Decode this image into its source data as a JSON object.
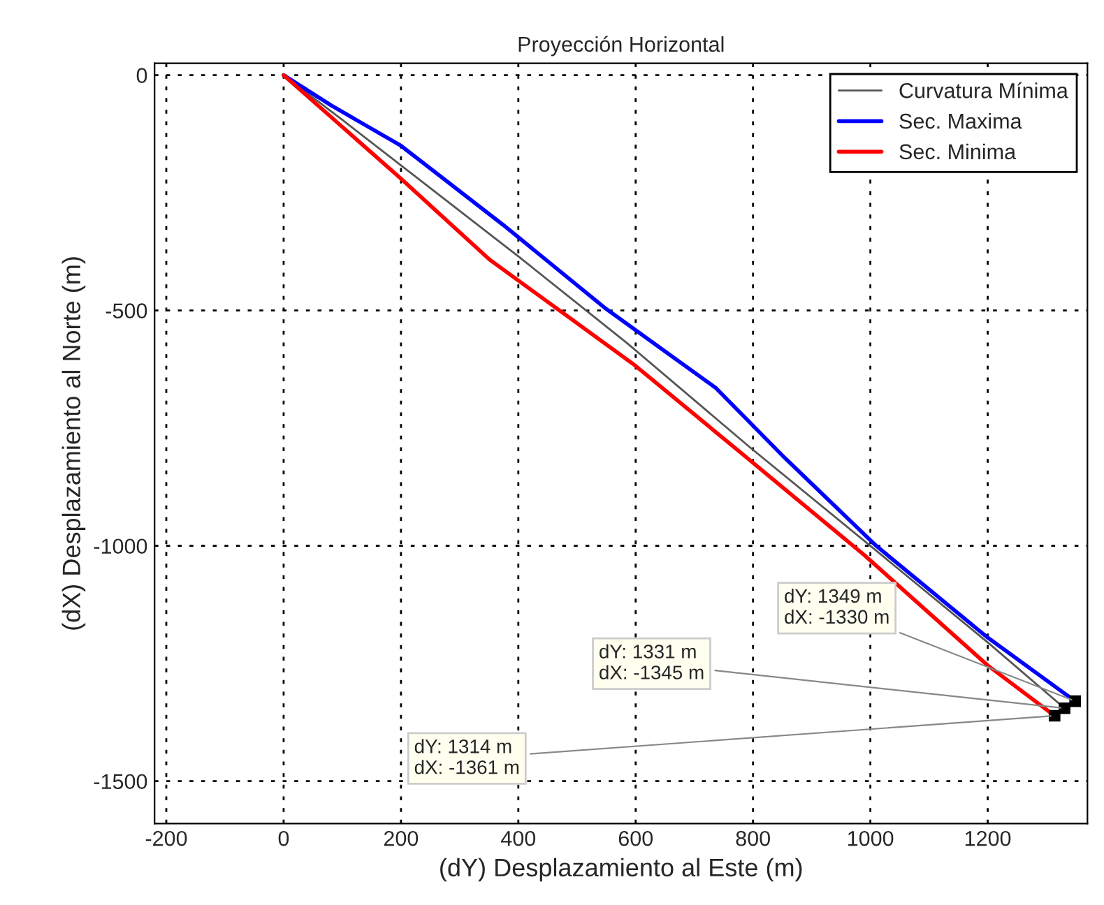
{
  "chart_data": {
    "type": "line",
    "title": "Proyección Horizontal",
    "xlabel": "(dY) Desplazamiento al Este (m)",
    "ylabel": "(dX) Desplazamiento al Norte (m)",
    "series": [
      {
        "name": "Curvatura Mínima",
        "color": "#555555",
        "x": [
          0,
          100,
          250,
          400,
          585,
          795,
          1000,
          1200,
          1331
        ],
        "values": [
          0,
          -95,
          -240,
          -385,
          -569,
          -791,
          -1000,
          -1205,
          -1345
        ]
      },
      {
        "name": "Sec. Maxima",
        "color": "#0000ff",
        "x": [
          0,
          82,
          200,
          374,
          550,
          737,
          854,
          1010,
          1200,
          1349
        ],
        "values": [
          0,
          -65,
          -150,
          -318,
          -497,
          -665,
          -813,
          -1000,
          -1195,
          -1330
        ]
      },
      {
        "name": "Sec. Minima",
        "color": "#ff0000",
        "x": [
          0,
          100,
          200,
          351,
          596,
          784,
          990,
          1200,
          1314
        ],
        "values": [
          0,
          -110,
          -220,
          -392,
          -614,
          -807,
          -1020,
          -1254,
          -1361
        ]
      }
    ],
    "xlim": [
      -220,
      1370
    ],
    "ylim": [
      -1590,
      25
    ],
    "xticks": [
      -200,
      0,
      200,
      400,
      600,
      800,
      1000,
      1200
    ],
    "yticks": [
      -1500,
      -1000,
      -500,
      0
    ],
    "grid": true,
    "legend": "top right",
    "line_style": "solid",
    "marker": "none",
    "annotations": [
      {
        "text": "dY: 1349 m\ndX: -1330 m",
        "x": 1349,
        "y": -1330
      },
      {
        "text": "dY: 1331 m\ndX: -1345 m",
        "x": 1331,
        "y": -1345
      },
      {
        "text": "dY: 1314 m\ndX: -1361 m",
        "x": 1314,
        "y": -1361
      }
    ]
  }
}
